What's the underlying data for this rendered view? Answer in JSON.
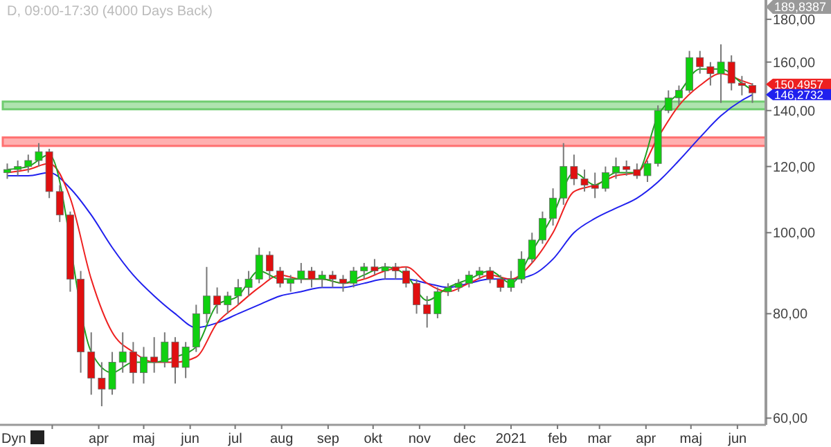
{
  "chart_data": {
    "type": "candlestick",
    "title": "D, 09:00-17:30 (4000 Days Back)",
    "annotations": [
      "189,8387",
      {
        "text": "150,4957",
        "x": "2021-06-11",
        "y": 150.4957
      },
      {
        "text": "146,2732",
        "x": "2021-06-11",
        "y": 146.2732
      },
      "Dyn"
    ],
    "log": true,
    "grid": false,
    "xlim": [
      "2020-01-28",
      "2021-06-20"
    ],
    "xticks": [
      {
        "value": "2020-03-01",
        "label": null
      },
      {
        "value": "2020-04-01",
        "label": "apr"
      },
      {
        "value": "2020-05-01",
        "label": "maj"
      },
      {
        "value": "2020-06-01",
        "label": "jun"
      },
      {
        "value": "2020-07-01",
        "label": "jul"
      },
      {
        "value": "2020-08-01",
        "label": "aug"
      },
      {
        "value": "2020-09-01",
        "label": "sep"
      },
      {
        "value": "2020-10-01",
        "label": "okt"
      },
      {
        "value": "2020-11-01",
        "label": "nov"
      },
      {
        "value": "2020-12-01",
        "label": "dec"
      },
      {
        "value": "2021-01-01",
        "label": "2021"
      },
      {
        "value": "2021-02-01",
        "label": "feb"
      },
      {
        "value": "2021-03-01",
        "label": "mar"
      },
      {
        "value": "2021-04-01",
        "label": "apr"
      },
      {
        "value": "2021-05-01",
        "label": "maj"
      },
      {
        "value": "2021-06-01",
        "label": "jun"
      }
    ],
    "ylim": [
      58.9,
      189.8387
    ],
    "yticks": [
      {
        "value": 60,
        "label": "60,00"
      },
      {
        "value": 80,
        "label": "80,00"
      },
      {
        "value": 100,
        "label": "100,00"
      },
      {
        "value": 120,
        "label": "120,00"
      },
      {
        "value": 140,
        "label": "140,00"
      },
      {
        "value": 160,
        "label": "160,00"
      },
      {
        "value": 180,
        "label": "180,00"
      }
    ],
    "bands": [
      {
        "axis": "y",
        "from": 127,
        "to": 130,
        "color": "#ff7070"
      },
      {
        "axis": "y",
        "from": 140.5,
        "to": 143.5,
        "color": "#70cc70"
      }
    ],
    "x": [
      "2020-01-31",
      "2020-02-07",
      "2020-02-14",
      "2020-02-21",
      "2020-02-28",
      "2020-03-06",
      "2020-03-13",
      "2020-03-20",
      "2020-03-27",
      "2020-04-03",
      "2020-04-10",
      "2020-04-17",
      "2020-04-24",
      "2020-05-01",
      "2020-05-08",
      "2020-05-15",
      "2020-05-22",
      "2020-05-29",
      "2020-06-05",
      "2020-06-12",
      "2020-06-19",
      "2020-06-26",
      "2020-07-03",
      "2020-07-10",
      "2020-07-17",
      "2020-07-24",
      "2020-07-31",
      "2020-08-07",
      "2020-08-14",
      "2020-08-21",
      "2020-08-28",
      "2020-09-04",
      "2020-09-11",
      "2020-09-18",
      "2020-09-25",
      "2020-10-02",
      "2020-10-09",
      "2020-10-16",
      "2020-10-23",
      "2020-10-30",
      "2020-11-06",
      "2020-11-13",
      "2020-11-20",
      "2020-11-27",
      "2020-12-04",
      "2020-12-11",
      "2020-12-18",
      "2020-12-25",
      "2021-01-01",
      "2021-01-08",
      "2021-01-15",
      "2021-01-22",
      "2021-01-29",
      "2021-02-05",
      "2021-02-12",
      "2021-02-19",
      "2021-02-26",
      "2021-03-05",
      "2021-03-12",
      "2021-03-19",
      "2021-03-26",
      "2021-04-02",
      "2021-04-09",
      "2021-04-16",
      "2021-04-23",
      "2021-04-30",
      "2021-05-07",
      "2021-05-14",
      "2021-05-21",
      "2021-05-28",
      "2021-06-04",
      "2021-06-11"
    ],
    "ohlc": [
      [
        118,
        121,
        116,
        119
      ],
      [
        119,
        122,
        117,
        120
      ],
      [
        120,
        124,
        118,
        122
      ],
      [
        122,
        128,
        120,
        125
      ],
      [
        125,
        126,
        110,
        112
      ],
      [
        112,
        114,
        103,
        105
      ],
      [
        105,
        106,
        85,
        88
      ],
      [
        88,
        90,
        68,
        72
      ],
      [
        72,
        76,
        64,
        67
      ],
      [
        67,
        70,
        62,
        65
      ],
      [
        65,
        72,
        64,
        70
      ],
      [
        70,
        76,
        68,
        72
      ],
      [
        72,
        74,
        66,
        68
      ],
      [
        68,
        73,
        66,
        71
      ],
      [
        71,
        75,
        68,
        70
      ],
      [
        70,
        76,
        69,
        74
      ],
      [
        74,
        75,
        66,
        69
      ],
      [
        69,
        74,
        67,
        73
      ],
      [
        73,
        82,
        72,
        80
      ],
      [
        80,
        91,
        78,
        84
      ],
      [
        84,
        86,
        80,
        82
      ],
      [
        82,
        85,
        80,
        84
      ],
      [
        84,
        88,
        82,
        86
      ],
      [
        86,
        90,
        84,
        88
      ],
      [
        88,
        96,
        87,
        94
      ],
      [
        94,
        95,
        88,
        90
      ],
      [
        90,
        91,
        86,
        87
      ],
      [
        87,
        89,
        85,
        88
      ],
      [
        88,
        92,
        87,
        90
      ],
      [
        90,
        91,
        86,
        88
      ],
      [
        88,
        90,
        86,
        89
      ],
      [
        89,
        90,
        86,
        88
      ],
      [
        88,
        89,
        85,
        87
      ],
      [
        87,
        91,
        86,
        90
      ],
      [
        90,
        92,
        88,
        91
      ],
      [
        91,
        93,
        89,
        90
      ],
      [
        90,
        92,
        88,
        91
      ],
      [
        91,
        92,
        88,
        90
      ],
      [
        90,
        91,
        86,
        87
      ],
      [
        87,
        88,
        80,
        82
      ],
      [
        82,
        84,
        77,
        80
      ],
      [
        80,
        86,
        79,
        85
      ],
      [
        85,
        87,
        84,
        86
      ],
      [
        86,
        88,
        85,
        87
      ],
      [
        87,
        90,
        86,
        89
      ],
      [
        89,
        91,
        88,
        90
      ],
      [
        90,
        91,
        87,
        88
      ],
      [
        88,
        89,
        85,
        86
      ],
      [
        86,
        90,
        85,
        88
      ],
      [
        88,
        95,
        87,
        93
      ],
      [
        93,
        100,
        92,
        98
      ],
      [
        98,
        106,
        97,
        104
      ],
      [
        104,
        113,
        102,
        110
      ],
      [
        110,
        128,
        108,
        120
      ],
      [
        120,
        124,
        114,
        116
      ],
      [
        116,
        119,
        112,
        114
      ],
      [
        114,
        118,
        110,
        113
      ],
      [
        113,
        120,
        112,
        118
      ],
      [
        118,
        123,
        116,
        120
      ],
      [
        120,
        122,
        117,
        119
      ],
      [
        119,
        121,
        116,
        117
      ],
      [
        117,
        122,
        115,
        121
      ],
      [
        121,
        142,
        120,
        140
      ],
      [
        140,
        148,
        139,
        145
      ],
      [
        145,
        150,
        142,
        148
      ],
      [
        148,
        165,
        147,
        162
      ],
      [
        162,
        165,
        155,
        158
      ],
      [
        158,
        160,
        150,
        155
      ],
      [
        155,
        168,
        143,
        160
      ],
      [
        160,
        163,
        148,
        151
      ],
      [
        151,
        154,
        146,
        150
      ],
      [
        150,
        151,
        143,
        147
      ]
    ],
    "series": [
      {
        "type": "line",
        "color": "#2020ee",
        "x": [
          "2020-01-31",
          "2020-02-14",
          "2020-02-28",
          "2020-03-13",
          "2020-03-27",
          "2020-04-10",
          "2020-04-24",
          "2020-05-08",
          "2020-05-22",
          "2020-06-05",
          "2020-06-19",
          "2020-07-03",
          "2020-07-17",
          "2020-07-31",
          "2020-08-14",
          "2020-08-28",
          "2020-09-11",
          "2020-09-25",
          "2020-10-09",
          "2020-10-23",
          "2020-11-06",
          "2020-11-20",
          "2020-12-04",
          "2020-12-18",
          "2021-01-01",
          "2021-01-15",
          "2021-01-29",
          "2021-02-12",
          "2021-02-26",
          "2021-03-12",
          "2021-03-26",
          "2021-04-09",
          "2021-04-23",
          "2021-05-07",
          "2021-05-21",
          "2021-06-04",
          "2021-06-11"
        ],
        "values": [
          117,
          117,
          118,
          113,
          105,
          96,
          89,
          84,
          80,
          77,
          78,
          80,
          82,
          84,
          85,
          86,
          86,
          87,
          88,
          88,
          87,
          86,
          87,
          88,
          88,
          89,
          93,
          100,
          104,
          107,
          110,
          115,
          122,
          130,
          138,
          144,
          146.2732
        ]
      },
      {
        "type": "line",
        "color": "#ee2020",
        "x": [
          "2020-01-31",
          "2020-02-14",
          "2020-02-28",
          "2020-03-13",
          "2020-03-27",
          "2020-04-10",
          "2020-04-24",
          "2020-05-08",
          "2020-05-22",
          "2020-06-05",
          "2020-06-19",
          "2020-07-03",
          "2020-07-17",
          "2020-07-31",
          "2020-08-14",
          "2020-08-28",
          "2020-09-11",
          "2020-09-25",
          "2020-10-09",
          "2020-10-23",
          "2020-11-06",
          "2020-11-20",
          "2020-12-04",
          "2020-12-18",
          "2021-01-01",
          "2021-01-15",
          "2021-01-29",
          "2021-02-12",
          "2021-02-26",
          "2021-03-12",
          "2021-03-26",
          "2021-04-09",
          "2021-04-23",
          "2021-05-07",
          "2021-05-21",
          "2021-06-04",
          "2021-06-11"
        ],
        "values": [
          118,
          119,
          121,
          110,
          88,
          76,
          72,
          70,
          70,
          71,
          78,
          82,
          86,
          89,
          88,
          88,
          87,
          88,
          90,
          91,
          87,
          85,
          87,
          89,
          88,
          92,
          100,
          112,
          114,
          117,
          118,
          130,
          142,
          150,
          155,
          152,
          150.4957
        ]
      },
      {
        "type": "line",
        "color": "#20a020",
        "x": [
          "2020-01-31",
          "2020-02-14",
          "2020-02-28",
          "2020-03-27",
          "2020-04-10",
          "2020-04-24",
          "2020-05-08",
          "2020-05-22",
          "2020-06-05",
          "2020-06-19",
          "2020-07-03",
          "2020-07-17",
          "2020-07-31",
          "2020-08-14",
          "2020-08-28",
          "2020-09-11",
          "2020-09-25",
          "2020-10-09",
          "2020-10-23",
          "2020-11-06",
          "2020-11-20",
          "2020-12-04",
          "2020-12-18",
          "2021-01-01",
          "2021-01-15",
          "2021-01-29",
          "2021-02-12",
          "2021-02-26",
          "2021-03-12",
          "2021-03-26",
          "2021-04-09",
          "2021-04-23",
          "2021-05-07",
          "2021-05-21",
          "2021-06-04",
          "2021-06-11"
        ],
        "values": [
          119,
          120,
          124,
          72,
          68,
          70,
          70,
          71,
          73,
          82,
          84,
          90,
          88,
          88,
          88,
          87,
          89,
          91,
          89,
          83,
          86,
          88,
          90,
          87,
          95,
          105,
          118,
          114,
          118,
          118,
          138,
          147,
          157,
          157,
          151,
          148
        ]
      }
    ]
  }
}
